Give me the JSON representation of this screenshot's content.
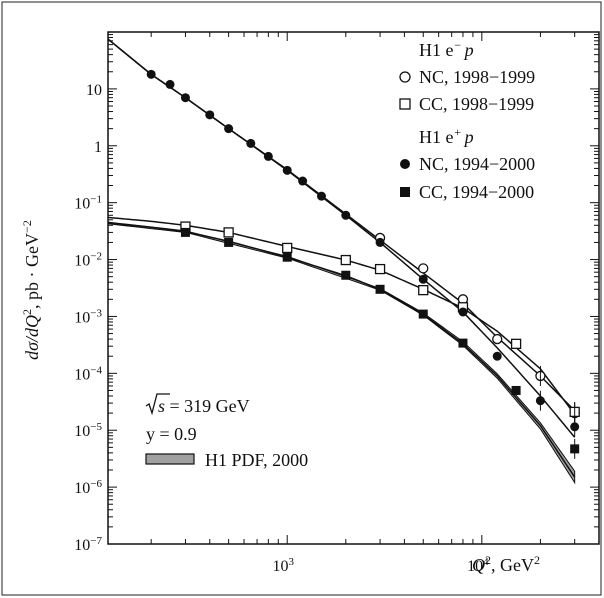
{
  "chart_data": {
    "type": "scatter",
    "xlabel_main": "Q",
    "xlabel_sup": "2",
    "xlabel_unit": ", GeV",
    "xlabel_unit_sup": "2",
    "ylabel_main": "dσ/dQ",
    "ylabel_sup": "2",
    "ylabel_unit": ", pb · GeV",
    "ylabel_unit_sup": "−2",
    "xscale": "log",
    "yscale": "log",
    "xlim": [
      120,
      40000
    ],
    "ylim": [
      1e-07,
      100
    ],
    "xticks": [
      {
        "value": 1000,
        "base": "10",
        "exp": "3"
      },
      {
        "value": 10000,
        "base": "10",
        "exp": "4"
      }
    ],
    "yticks": [
      {
        "value": 10,
        "label": "10"
      },
      {
        "value": 1,
        "label": "1"
      },
      {
        "value": 0.1,
        "base": "10",
        "exp": "−1"
      },
      {
        "value": 0.01,
        "base": "10",
        "exp": "−2"
      },
      {
        "value": 0.001,
        "base": "10",
        "exp": "−3"
      },
      {
        "value": 0.0001,
        "base": "10",
        "exp": "−4"
      },
      {
        "value": 1e-05,
        "base": "10",
        "exp": "−5"
      },
      {
        "value": 1e-06,
        "base": "10",
        "exp": "−6"
      },
      {
        "value": 1e-07,
        "base": "10",
        "exp": "−7"
      }
    ],
    "legend_position": "top-right",
    "legend": {
      "group1_title": "H1 e",
      "group1_sup": "−",
      "group1_p": "p",
      "group2_title": "H1 e",
      "group2_sup": "+",
      "group2_p": "p"
    },
    "series": [
      {
        "name": "NC, 1998−1999",
        "marker": "open-circle",
        "points": [
          [
            3000,
            0.024
          ],
          [
            5000,
            0.007
          ],
          [
            8000,
            0.002
          ],
          [
            12000,
            0.0004
          ],
          [
            20000,
            9e-05
          ],
          [
            30000,
            2e-05
          ]
        ]
      },
      {
        "name": "CC, 1998−1999",
        "marker": "open-square",
        "points": [
          [
            300,
            0.038
          ],
          [
            500,
            0.03
          ],
          [
            1000,
            0.016
          ],
          [
            2000,
            0.0098
          ],
          [
            3000,
            0.0068
          ],
          [
            5000,
            0.0029
          ],
          [
            8000,
            0.00145
          ],
          [
            15000,
            0.00033
          ],
          [
            30000,
            2.1e-05
          ]
        ]
      },
      {
        "name": "NC, 1994−2000",
        "marker": "filled-circle",
        "points": [
          [
            200,
            18
          ],
          [
            250,
            12
          ],
          [
            300,
            7
          ],
          [
            400,
            3.5
          ],
          [
            500,
            2
          ],
          [
            650,
            1.1
          ],
          [
            800,
            0.65
          ],
          [
            1000,
            0.37
          ],
          [
            1200,
            0.24
          ],
          [
            1500,
            0.13
          ],
          [
            2000,
            0.06
          ],
          [
            3000,
            0.02
          ],
          [
            5000,
            0.0045
          ],
          [
            8000,
            0.0012
          ],
          [
            12000,
            0.0002
          ],
          [
            20000,
            3.3e-05
          ],
          [
            30000,
            1.15e-05
          ]
        ]
      },
      {
        "name": "CC, 1994−2000",
        "marker": "filled-square",
        "points": [
          [
            300,
            0.03
          ],
          [
            500,
            0.02
          ],
          [
            1000,
            0.011
          ],
          [
            2000,
            0.0053
          ],
          [
            3000,
            0.003
          ],
          [
            5000,
            0.0011
          ],
          [
            8000,
            0.00034
          ],
          [
            15000,
            5e-05
          ],
          [
            30000,
            4.7e-06
          ]
        ]
      }
    ],
    "curves": [
      {
        "name": "NC e− PDF",
        "points": [
          [
            120,
            75
          ],
          [
            200,
            18
          ],
          [
            300,
            7
          ],
          [
            500,
            2
          ],
          [
            1000,
            0.38
          ],
          [
            2000,
            0.063
          ],
          [
            3000,
            0.022
          ],
          [
            5000,
            0.0058
          ],
          [
            8000,
            0.0017
          ],
          [
            12000,
            0.00043
          ],
          [
            20000,
            9e-05
          ],
          [
            30000,
            2.2e-05
          ]
        ]
      },
      {
        "name": "NC e+ PDF",
        "points": [
          [
            120,
            75
          ],
          [
            200,
            18
          ],
          [
            300,
            7
          ],
          [
            500,
            2
          ],
          [
            1000,
            0.37
          ],
          [
            2000,
            0.06
          ],
          [
            3000,
            0.02
          ],
          [
            5000,
            0.0045
          ],
          [
            8000,
            0.0012
          ],
          [
            12000,
            0.00028
          ],
          [
            20000,
            4e-05
          ],
          [
            30000,
            7.5e-06
          ]
        ]
      },
      {
        "name": "CC e− PDF",
        "points": [
          [
            120,
            0.055
          ],
          [
            200,
            0.047
          ],
          [
            300,
            0.04
          ],
          [
            500,
            0.03
          ],
          [
            1000,
            0.017
          ],
          [
            2000,
            0.0098
          ],
          [
            3000,
            0.0065
          ],
          [
            5000,
            0.003
          ],
          [
            8000,
            0.0014
          ],
          [
            12000,
            0.00055
          ],
          [
            20000,
            0.00012
          ],
          [
            30000,
            1.9e-05
          ]
        ]
      },
      {
        "name": "CC e+ PDF",
        "points": [
          [
            120,
            0.044
          ],
          [
            200,
            0.037
          ],
          [
            300,
            0.031
          ],
          [
            500,
            0.021
          ],
          [
            1000,
            0.011
          ],
          [
            2000,
            0.0052
          ],
          [
            3000,
            0.003
          ],
          [
            5000,
            0.0011
          ],
          [
            8000,
            0.00033
          ],
          [
            12000,
            9e-05
          ],
          [
            20000,
            1.2e-05
          ],
          [
            30000,
            1.5e-06
          ]
        ]
      }
    ],
    "band": {
      "lower": [
        [
          120,
          0.0425
        ],
        [
          300,
          0.03
        ],
        [
          1000,
          0.0106
        ],
        [
          3000,
          0.0029
        ],
        [
          5000,
          0.00105
        ],
        [
          8000,
          0.00031
        ],
        [
          12000,
          8.2e-05
        ],
        [
          20000,
          1.05e-05
        ],
        [
          30000,
          1.2e-06
        ]
      ],
      "upper": [
        [
          120,
          0.0455
        ],
        [
          300,
          0.032
        ],
        [
          1000,
          0.0114
        ],
        [
          3000,
          0.0031
        ],
        [
          5000,
          0.00115
        ],
        [
          8000,
          0.00036
        ],
        [
          12000,
          9.8e-05
        ],
        [
          20000,
          1.35e-05
        ],
        [
          30000,
          1.9e-06
        ]
      ]
    },
    "annotations": {
      "sqrt_s_label": "s",
      "sqrt_s_value": " = 319 GeV",
      "y_value": "y = 0.9",
      "pdf_label": "H1 PDF, 2000"
    }
  }
}
